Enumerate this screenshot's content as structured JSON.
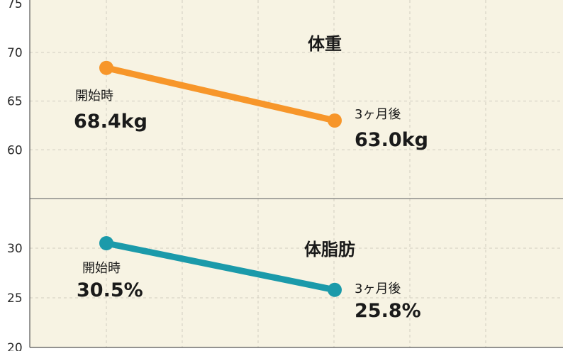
{
  "chart_data": [
    {
      "type": "line",
      "title": "体重",
      "x": [
        "開始時",
        "3ヶ月後"
      ],
      "y_ticks": [
        60,
        65,
        70,
        75
      ],
      "ylim": [
        55,
        75
      ],
      "grid": true,
      "color": "#f7962a",
      "series": [
        {
          "values": [
            68.4,
            63.0
          ]
        }
      ],
      "point_labels": [
        {
          "label": "開始時",
          "value": "68.4kg"
        },
        {
          "label": "3ヶ月後",
          "value": "63.0kg"
        }
      ]
    },
    {
      "type": "line",
      "title": "体脂肪",
      "x": [
        "開始時",
        "3ヶ月後"
      ],
      "y_ticks": [
        20,
        25,
        30
      ],
      "ylim": [
        20,
        35
      ],
      "grid": true,
      "color": "#1b9aaa",
      "series": [
        {
          "values": [
            30.5,
            25.8
          ]
        }
      ],
      "point_labels": [
        {
          "label": "開始時",
          "value": "30.5%"
        },
        {
          "label": "3ヶ月後",
          "value": "25.8%"
        }
      ]
    }
  ],
  "colors": {
    "background": "#f7f3e3",
    "grid": "#d8d4c6",
    "axis": "#555555"
  }
}
